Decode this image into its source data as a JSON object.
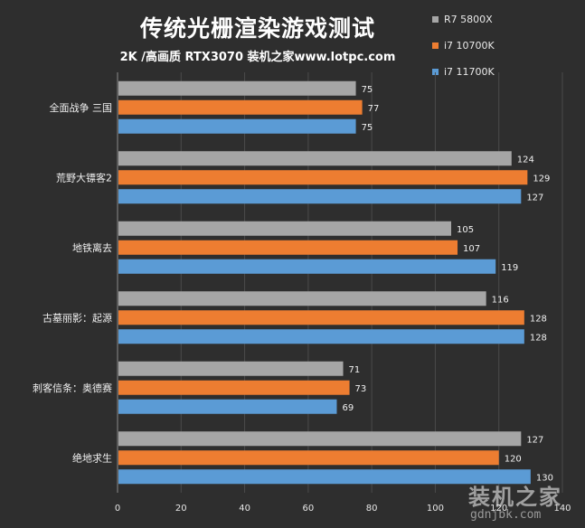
{
  "chart_data": {
    "type": "bar",
    "orientation": "horizontal",
    "title": "传统光栅渲染游戏测试",
    "subtitle": "2K /高画质 RTX3070 装机之家www.lotpc.com",
    "categories": [
      "全面战争 三国",
      "荒野大镖客2",
      "地铁离去",
      "古墓丽影：起源",
      "刺客信条：奥德赛",
      "绝地求生"
    ],
    "series": [
      {
        "name": "R7 5800X",
        "color": "#a6a6a6",
        "values": [
          75,
          124,
          105,
          116,
          71,
          127
        ]
      },
      {
        "name": "i7 10700K",
        "color": "#ed7d31",
        "values": [
          77,
          129,
          107,
          128,
          73,
          120
        ]
      },
      {
        "name": "i7 11700K",
        "color": "#5b9bd5",
        "values": [
          75,
          127,
          119,
          128,
          69,
          130
        ]
      }
    ],
    "xlim": [
      0,
      140
    ],
    "xticks": [
      0,
      20,
      40,
      60,
      80,
      100,
      120,
      140
    ],
    "grid": true,
    "legend_position": "top-right"
  },
  "watermark": {
    "name": "装机之家",
    "url": "gdnjbk.com"
  }
}
